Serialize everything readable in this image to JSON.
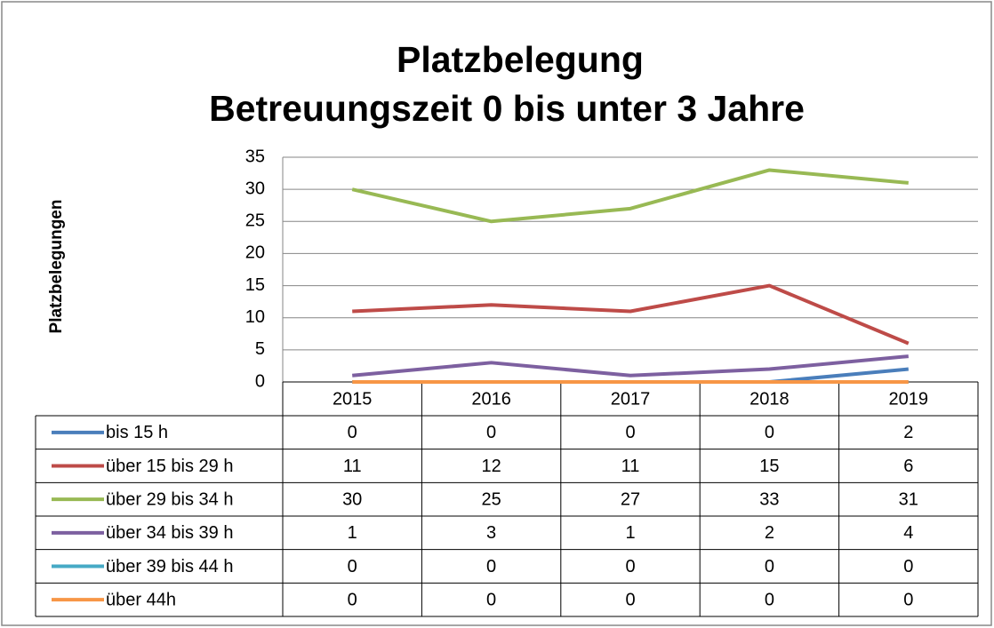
{
  "chart_data": {
    "type": "line",
    "title": [
      "Platzbelegung",
      "Betreuungszeit 0 bis unter 3 Jahre"
    ],
    "y_label": "Platzbelegungen",
    "categories": [
      "2015",
      "2016",
      "2017",
      "2018",
      "2019"
    ],
    "series": [
      {
        "name": "bis 15 h",
        "color": "#4a7ebb",
        "values": [
          0,
          0,
          0,
          0,
          2
        ]
      },
      {
        "name": "über 15 bis 29 h",
        "color": "#be4b48",
        "values": [
          11,
          12,
          11,
          15,
          6
        ]
      },
      {
        "name": "über 29 bis 34 h",
        "color": "#98b954",
        "values": [
          30,
          25,
          27,
          33,
          31
        ]
      },
      {
        "name": "über 34 bis 39 h",
        "color": "#7d60a0",
        "values": [
          1,
          3,
          1,
          2,
          4
        ]
      },
      {
        "name": "über 39 bis 44 h",
        "color": "#46aac5",
        "values": [
          0,
          0,
          0,
          0,
          0
        ]
      },
      {
        "name": "über 44h",
        "color": "#f79646",
        "values": [
          0,
          0,
          0,
          0,
          0
        ]
      }
    ],
    "ylim": [
      0,
      35
    ],
    "yticks": [
      0,
      5,
      10,
      15,
      20,
      25,
      30,
      35
    ],
    "grid": true,
    "data_table": true
  }
}
